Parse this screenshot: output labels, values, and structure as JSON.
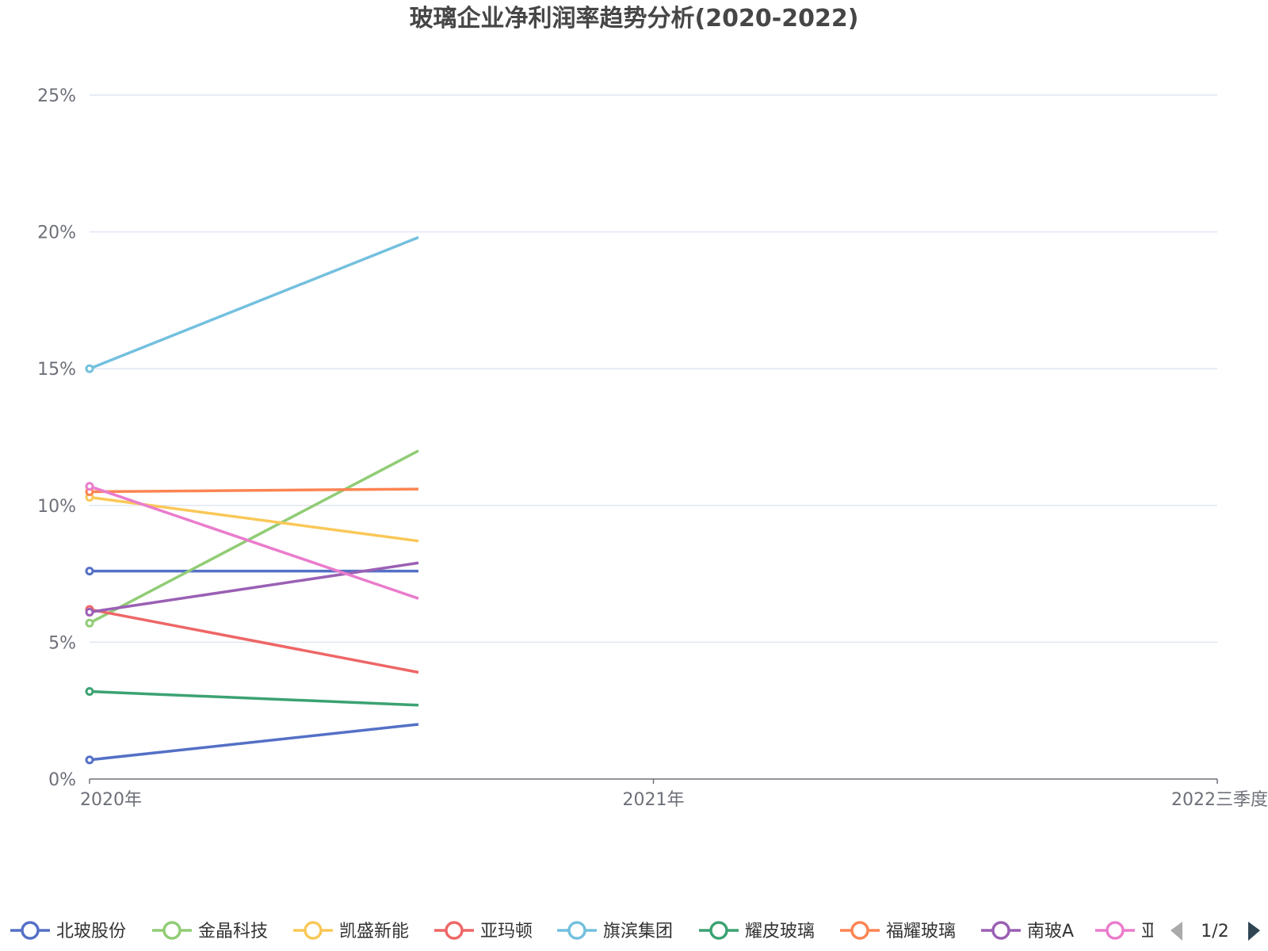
{
  "chart_data": {
    "type": "line",
    "title": "玻璃企业净利润率趋势分析(2020-2022)",
    "x": [
      "2020年",
      "2021年",
      "2022三季度"
    ],
    "y_ticks": [
      "0%",
      "5%",
      "10%",
      "15%",
      "20%",
      "25%"
    ],
    "ylim": [
      0,
      25
    ],
    "y_unit": "%",
    "grid": true,
    "legend_position": "bottom",
    "series": [
      {
        "name": "北玻股份",
        "color": "#5470c6",
        "values": [
          7.6,
          7.6,
          null
        ],
        "marker": "first"
      },
      {
        "name": "北玻股份",
        "color": "#5470c6",
        "values": [
          0.7,
          2.0,
          null
        ],
        "marker": "first",
        "legend": false
      },
      {
        "name": "金晶科技",
        "color": "#91cc75",
        "values": [
          5.7,
          12.0,
          null
        ],
        "marker": "first"
      },
      {
        "name": "凯盛新能",
        "color": "#fac858",
        "values": [
          10.3,
          8.7,
          null
        ],
        "marker": "first"
      },
      {
        "name": "亚玛顿",
        "color": "#ee6666",
        "values": [
          6.2,
          3.9,
          null
        ],
        "marker": "first"
      },
      {
        "name": "旗滨集团",
        "color": "#73c0de",
        "values": [
          15.0,
          19.8,
          null
        ],
        "marker": "first"
      },
      {
        "name": "耀皮玻璃",
        "color": "#3ba272",
        "values": [
          3.2,
          2.7,
          null
        ],
        "marker": "first"
      },
      {
        "name": "福耀玻璃",
        "color": "#fc8452",
        "values": [
          10.5,
          10.6,
          null
        ],
        "marker": "first"
      },
      {
        "name": "南玻A",
        "color": "#9a60b4",
        "values": [
          6.1,
          7.9,
          null
        ],
        "marker": "first"
      },
      {
        "name": "亚",
        "color": "#ea7ccc",
        "values": [
          10.7,
          6.6,
          null
        ],
        "marker": "first"
      }
    ],
    "legend": [
      {
        "name": "北玻股份",
        "color": "#5470c6"
      },
      {
        "name": "金晶科技",
        "color": "#91cc75"
      },
      {
        "name": "凯盛新能",
        "color": "#fac858"
      },
      {
        "name": "亚玛顿",
        "color": "#ee6666"
      },
      {
        "name": "旗滨集团",
        "color": "#73c0de"
      },
      {
        "name": "耀皮玻璃",
        "color": "#3ba272"
      },
      {
        "name": "福耀玻璃",
        "color": "#fc8452"
      },
      {
        "name": "南玻A",
        "color": "#9a60b4"
      },
      {
        "name": "亚",
        "color": "#ea7ccc"
      }
    ],
    "legend_page": "1/2"
  },
  "colors": {
    "grid": "#E0E6F1",
    "axis": "#6E7079",
    "pager_inactive": "#aaaaaa",
    "pager_active": "#2f4554"
  },
  "icons": {
    "prev": "triangle-left-icon",
    "next": "triangle-right-icon"
  }
}
